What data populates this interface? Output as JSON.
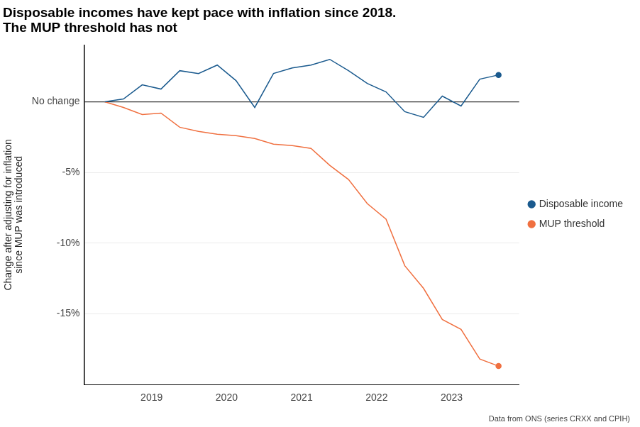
{
  "chart_data": {
    "type": "line",
    "title": [
      "Disposable incomes have kept pace with inflation since 2018.",
      "The MUP threshold has not"
    ],
    "y_label": [
      "Change after adjusting for inflation",
      "since MUP was introduced"
    ],
    "caption": "Data from ONS (series CRXX and CPIH)",
    "x": [
      2018.375,
      2018.625,
      2018.875,
      2019.125,
      2019.375,
      2019.625,
      2019.875,
      2020.125,
      2020.375,
      2020.625,
      2020.875,
      2021.125,
      2021.375,
      2021.625,
      2021.875,
      2022.125,
      2022.375,
      2022.625,
      2022.875,
      2023.125,
      2023.375,
      2023.625
    ],
    "series": [
      {
        "name": "Disposable income",
        "color": "#1a5a8e",
        "marker": "end",
        "values": [
          0,
          0.2,
          1.2,
          0.9,
          2.2,
          2.0,
          2.6,
          1.5,
          -0.4,
          2.0,
          2.4,
          2.6,
          3.0,
          2.2,
          1.3,
          0.7,
          -0.7,
          -1.1,
          0.4,
          -0.3,
          1.6,
          1.9
        ]
      },
      {
        "name": "MUP threshold",
        "color": "#f07040",
        "marker": "end",
        "values": [
          0,
          -0.4,
          -0.9,
          -0.8,
          -1.8,
          -2.1,
          -2.3,
          -2.4,
          -2.6,
          -3.0,
          -3.1,
          -3.3,
          -4.5,
          -5.5,
          -7.2,
          -8.3,
          -11.6,
          -13.2,
          -15.4,
          -16.1,
          -18.2,
          -18.7
        ]
      }
    ],
    "xlim": [
      2018.1,
      2023.9
    ],
    "xticks": [
      2019,
      2020,
      2021,
      2022,
      2023
    ],
    "ylim": [
      -20,
      4
    ],
    "yticks": [
      {
        "value": -15,
        "label": "-15%"
      },
      {
        "value": -10,
        "label": "-10%"
      },
      {
        "value": -5,
        "label": "-5%"
      },
      {
        "value": 0,
        "label": "No change"
      }
    ],
    "grid": "y",
    "legend": "right"
  }
}
